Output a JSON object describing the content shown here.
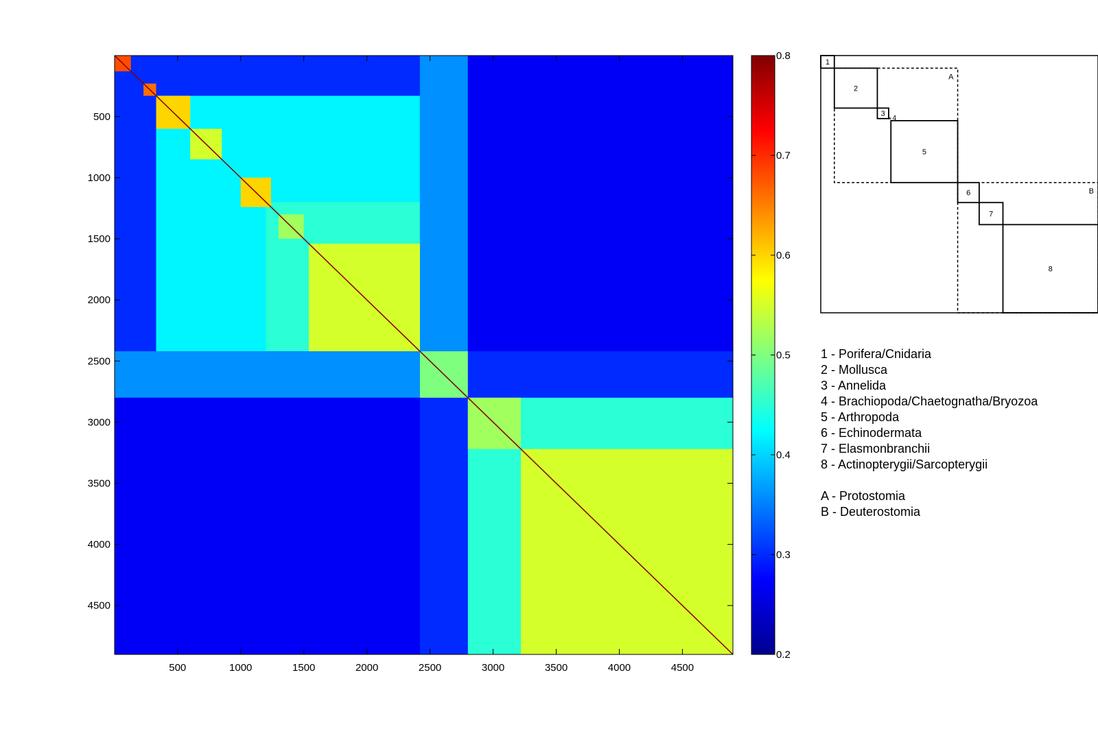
{
  "chart_data": [
    {
      "type": "heatmap",
      "title": "",
      "xlabel": "",
      "ylabel": "",
      "xlim": [
        1,
        4900
      ],
      "ylim": [
        1,
        4900
      ],
      "y_axis_direction": "top-to-bottom",
      "x_ticks": [
        "500",
        "1000",
        "1500",
        "2000",
        "2500",
        "3000",
        "3500",
        "4000",
        "4500"
      ],
      "y_ticks": [
        "500",
        "1000",
        "1500",
        "2000",
        "2500",
        "3000",
        "3500",
        "4000",
        "4500"
      ],
      "tick_values": [
        500,
        1000,
        1500,
        2000,
        2500,
        3000,
        3500,
        4000,
        4500
      ],
      "background_value": 0.3,
      "clusters": [
        {
          "range": [
            1,
            130
          ],
          "value": 0.68
        },
        {
          "range": [
            230,
            330
          ],
          "value": 0.66
        },
        {
          "range": [
            330,
            600
          ],
          "value": 0.6
        },
        {
          "range": [
            600,
            850
          ],
          "value": 0.55
        },
        {
          "range": [
            1000,
            1240
          ],
          "value": 0.6
        },
        {
          "range": [
            1300,
            1500
          ],
          "value": 0.52
        },
        {
          "range": [
            1540,
            2420
          ],
          "value": 0.55
        },
        {
          "range": [
            2420,
            2800
          ],
          "value": 0.5
        },
        {
          "range": [
            2800,
            3220
          ],
          "value": 0.52
        },
        {
          "range": [
            3220,
            4900
          ],
          "value": 0.55
        }
      ],
      "blocks": [
        {
          "rows": [
            330,
            2420
          ],
          "cols": [
            330,
            2420
          ],
          "value": 0.42
        },
        {
          "rows": [
            1200,
            2420
          ],
          "cols": [
            1200,
            2420
          ],
          "value": 0.45
        },
        {
          "rows": [
            2800,
            4900
          ],
          "cols": [
            2800,
            4900
          ],
          "value": 0.45
        },
        {
          "rows": [
            3220,
            4900
          ],
          "cols": [
            3220,
            4900
          ],
          "value": 0.52
        },
        {
          "rows": [
            1,
            2420
          ],
          "cols": [
            2420,
            2800
          ],
          "value": 0.36
        },
        {
          "rows": [
            2420,
            2800
          ],
          "cols": [
            1,
            2420
          ],
          "value": 0.36
        },
        {
          "rows": [
            1,
            2420
          ],
          "cols": [
            2800,
            4900
          ],
          "value": 0.27
        },
        {
          "rows": [
            2800,
            4900
          ],
          "cols": [
            1,
            2420
          ],
          "value": 0.27
        }
      ],
      "colorbar": {
        "colormap": "jet",
        "range": [
          0.2,
          0.8
        ],
        "ticks": [
          "0.2",
          "0.3",
          "0.4",
          "0.5",
          "0.6",
          "0.7",
          "0.8"
        ],
        "tick_values": [
          0.2,
          0.3,
          0.4,
          0.5,
          0.6,
          0.7,
          0.8
        ]
      }
    },
    {
      "type": "diagram",
      "extent": [
        0,
        4900
      ],
      "clades": [
        {
          "label": "1",
          "range": [
            1,
            240
          ]
        },
        {
          "label": "2",
          "range": [
            240,
            1000
          ]
        },
        {
          "label": "3",
          "range": [
            1000,
            1200
          ]
        },
        {
          "label": "4",
          "range": [
            1200,
            1240
          ]
        },
        {
          "label": "5",
          "range": [
            1240,
            2420
          ]
        },
        {
          "label": "6",
          "range": [
            2420,
            2800
          ]
        },
        {
          "label": "7",
          "range": [
            2800,
            3220
          ]
        },
        {
          "label": "8",
          "range": [
            3220,
            4900
          ]
        }
      ],
      "groups": [
        {
          "label": "A",
          "range": [
            240,
            2420
          ],
          "style": "dashed"
        },
        {
          "label": "B",
          "range": [
            2420,
            4900
          ],
          "style": "dashed"
        }
      ]
    }
  ],
  "legend": {
    "clades": [
      "1 - Porifera/Cnidaria",
      "2 - Mollusca",
      "3 - Annelida",
      "4 - Brachiopoda/Chaetognatha/Bryozoa",
      "5 - Arthropoda",
      "6 - Echinodermata",
      "7 - Elasmonbranchii",
      "8 - Actinopterygii/Sarcopterygii"
    ],
    "groups": [
      "A - Protostomia",
      "B - Deuterostomia"
    ]
  }
}
